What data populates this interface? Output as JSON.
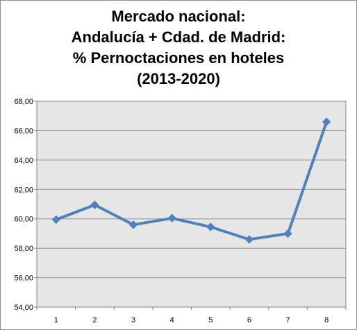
{
  "chart_data": {
    "type": "line",
    "title_lines": [
      "Mercado nacional:",
      "Andalucía + Cdad. de Madrid:",
      "% Pernoctaciones en hoteles",
      "(2013-2020)"
    ],
    "x": [
      1,
      2,
      3,
      4,
      5,
      6,
      7,
      8
    ],
    "x_tick_labels": [
      "1",
      "2",
      "3",
      "4",
      "5",
      "6",
      "7",
      "8"
    ],
    "y_tick_labels": [
      "54,00",
      "56,00",
      "58,00",
      "60,00",
      "62,00",
      "64,00",
      "66,00",
      "68,00"
    ],
    "series": [
      {
        "values": [
          59.95,
          60.95,
          59.6,
          60.05,
          59.45,
          58.6,
          59.0,
          66.6
        ]
      }
    ],
    "ylim": [
      54,
      68
    ],
    "y_tick_step": 2,
    "grid": "horizontal",
    "legend": "none",
    "colors": {
      "line": "#4f81bd",
      "plot_background": "#e6e6e6",
      "gridline": "#8c8c8c"
    }
  }
}
